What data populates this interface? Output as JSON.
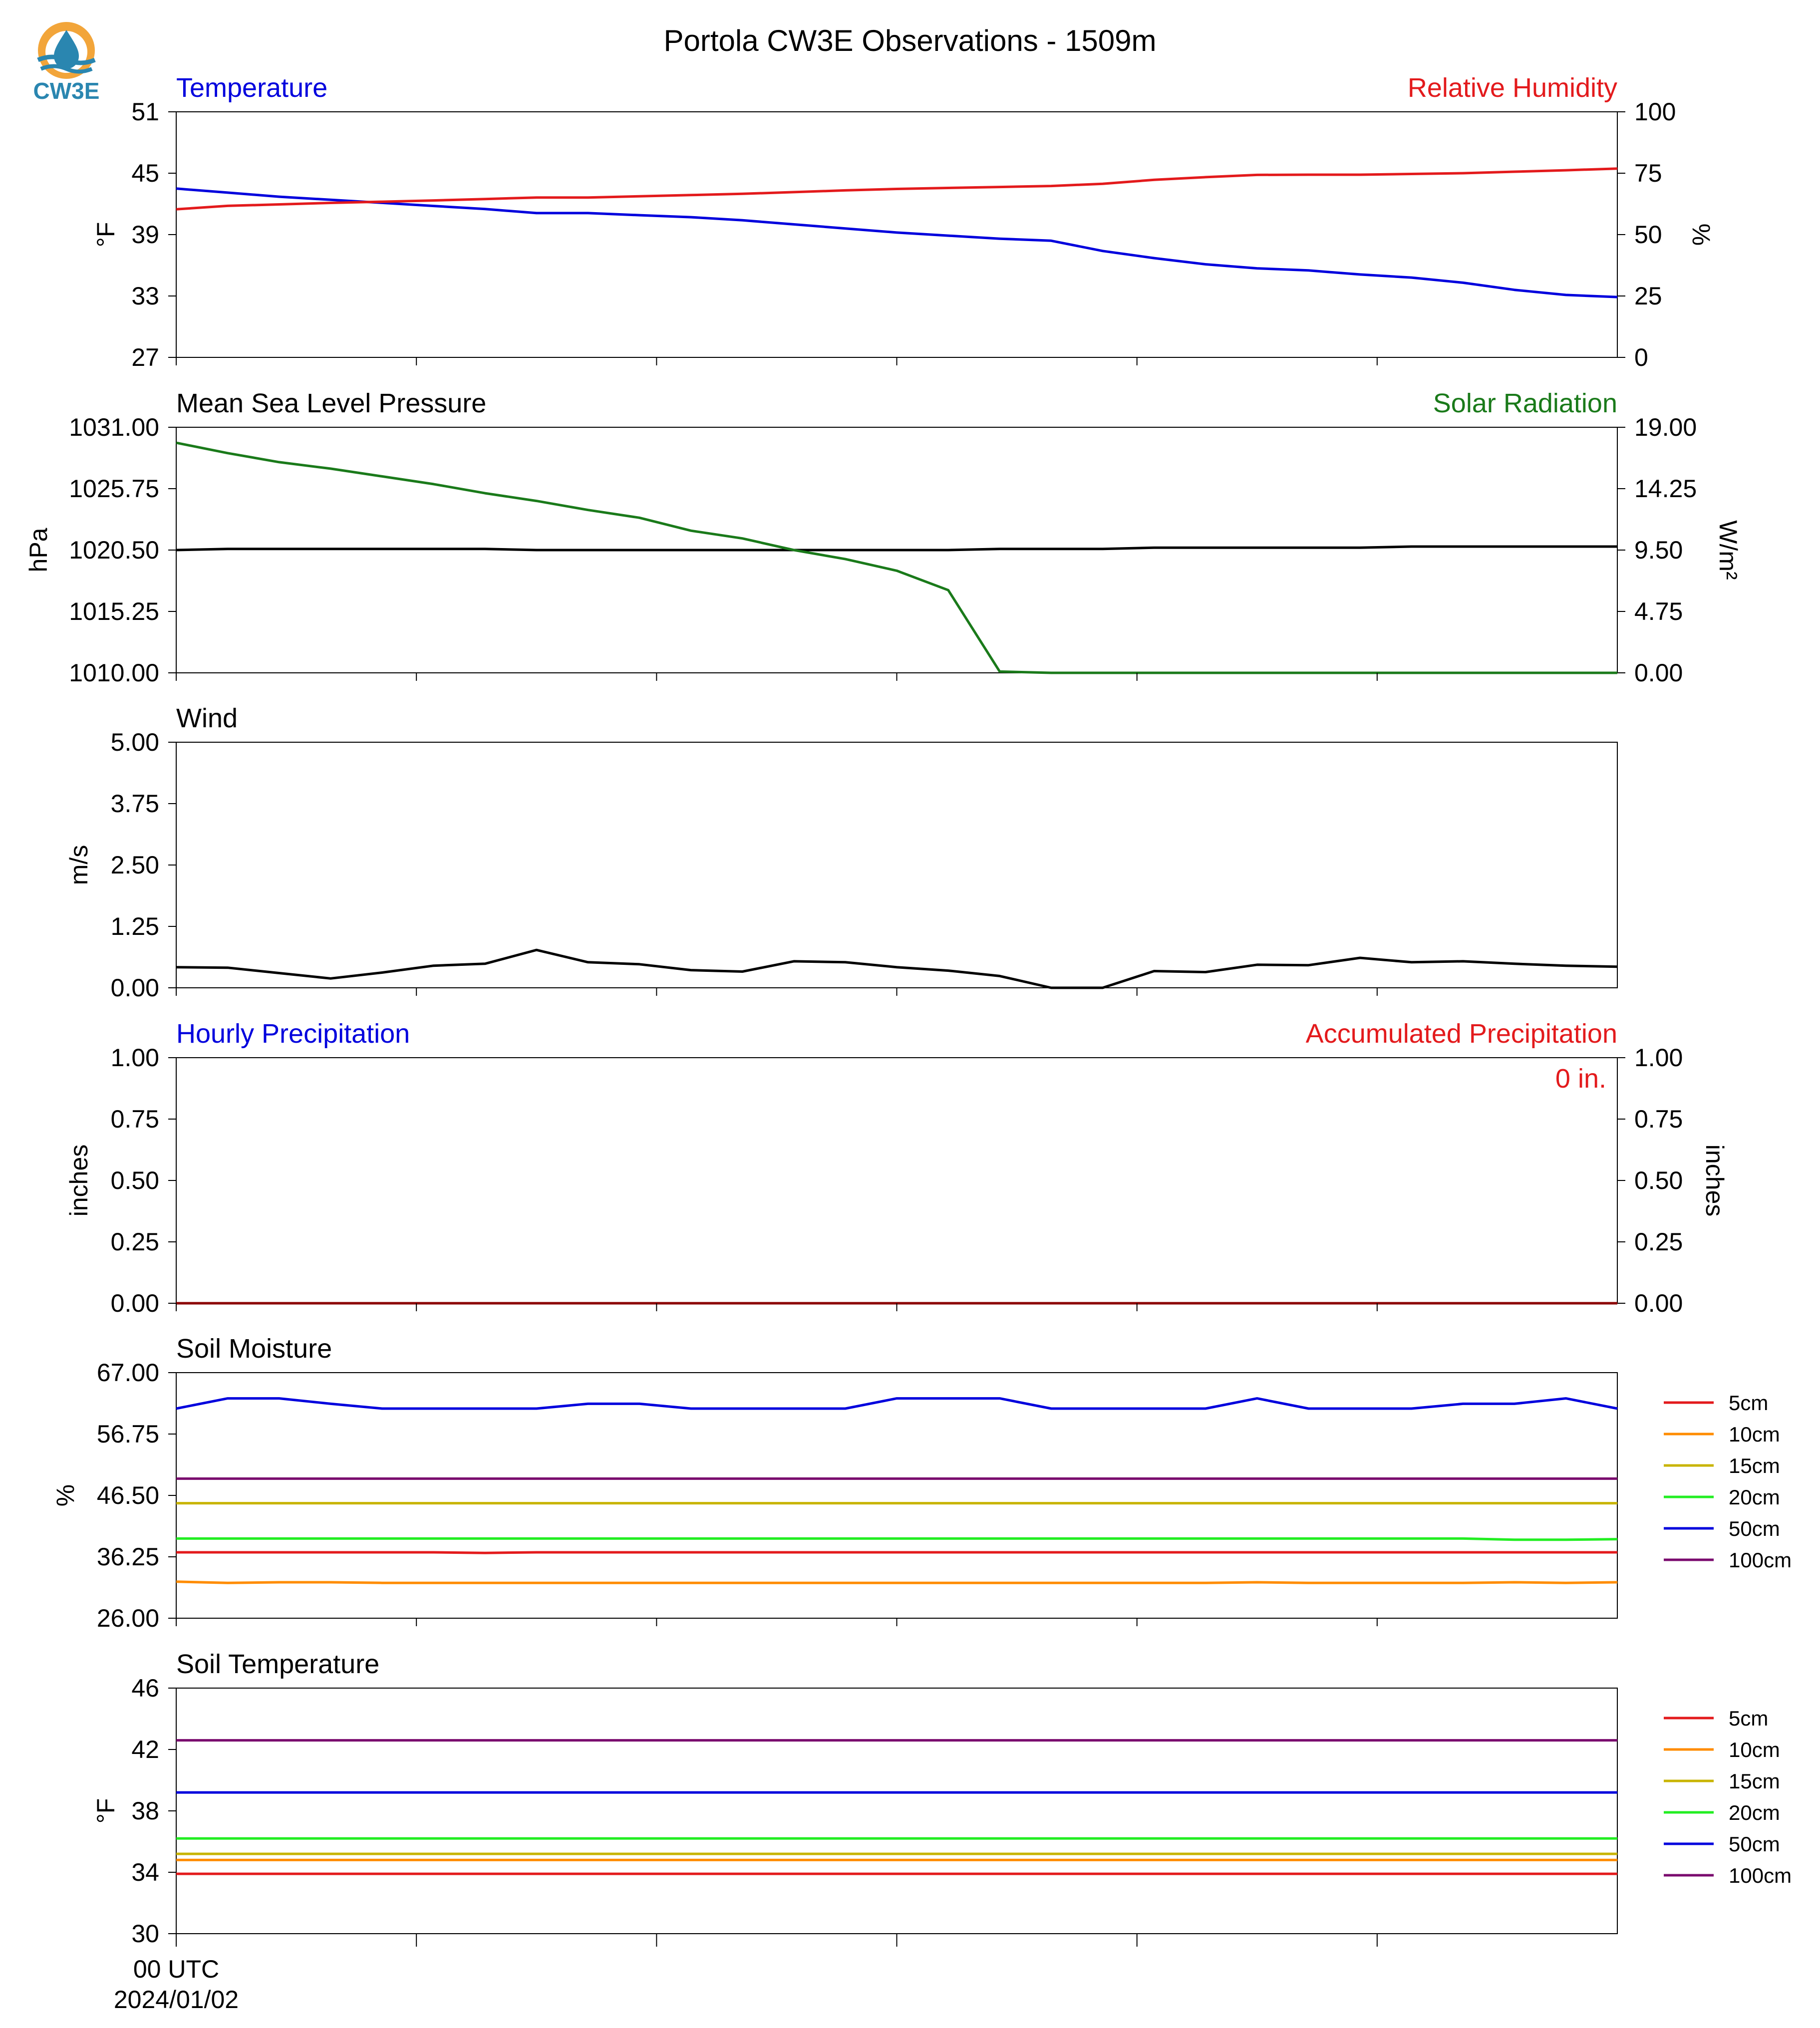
{
  "title": "Portola CW3E Observations - 1509m",
  "logo_text": "CW3E",
  "colors": {
    "blue": "#0000dd",
    "red": "#e31a1c",
    "green": "#1a7a1a",
    "black": "#000000",
    "logo_blue": "#2a86b0",
    "logo_orange": "#f2a53a"
  },
  "x_axis": {
    "first_tick_label": "00 UTC",
    "first_tick_date": "2024/01/02",
    "n_ticks": 6,
    "n_hours": 29
  },
  "chart_data": [
    {
      "type": "line",
      "title_left": "Temperature",
      "title_right": "Relative Humidity",
      "ylabel": "°F",
      "ylabel2": "%",
      "ylim": [
        27,
        51
      ],
      "ylim2": [
        0,
        100
      ],
      "yticks": [
        "27",
        "33",
        "39",
        "45",
        "51"
      ],
      "yticks2": [
        "0",
        "25",
        "50",
        "75",
        "100"
      ],
      "series": [
        {
          "axis": "left",
          "color": "#0000dd",
          "values": [
            43.5,
            43.1,
            42.7,
            42.4,
            42.1,
            41.8,
            41.5,
            41.1,
            41.1,
            40.9,
            40.7,
            40.4,
            40.0,
            39.6,
            39.2,
            38.9,
            38.6,
            38.4,
            37.4,
            36.7,
            36.1,
            35.7,
            35.5,
            35.1,
            34.8,
            34.3,
            33.6,
            33.1,
            32.9
          ]
        },
        {
          "axis": "right",
          "color": "#e31a1c",
          "values": [
            60.3,
            61.7,
            62.3,
            62.9,
            63.4,
            63.9,
            64.5,
            65.1,
            65.1,
            65.6,
            66.1,
            66.6,
            67.3,
            68.0,
            68.6,
            69.0,
            69.4,
            69.8,
            70.7,
            72.3,
            73.4,
            74.3,
            74.4,
            74.4,
            74.7,
            75.0,
            75.6,
            76.2,
            76.9
          ]
        }
      ]
    },
    {
      "type": "line",
      "title_left": "Mean Sea Level Pressure",
      "title_right": "Solar Radiation",
      "ylabel": "hPa",
      "ylabel2": "W/m²",
      "ylim": [
        1010,
        1031
      ],
      "ylim2": [
        0,
        19
      ],
      "yticks": [
        "1010.00",
        "1015.25",
        "1020.50",
        "1025.75",
        "1031.00"
      ],
      "yticks2": [
        "0.00",
        "4.75",
        "9.50",
        "14.25",
        "19.00"
      ],
      "series": [
        {
          "axis": "left",
          "color": "#000000",
          "values": [
            1020.5,
            1020.6,
            1020.6,
            1020.6,
            1020.6,
            1020.6,
            1020.6,
            1020.5,
            1020.5,
            1020.5,
            1020.5,
            1020.5,
            1020.5,
            1020.5,
            1020.5,
            1020.5,
            1020.6,
            1020.6,
            1020.6,
            1020.7,
            1020.7,
            1020.7,
            1020.7,
            1020.7,
            1020.8,
            1020.8,
            1020.8,
            1020.8,
            1020.8
          ]
        },
        {
          "axis": "right",
          "color": "#1a7a1a",
          "values": [
            17.8,
            17.0,
            16.3,
            15.8,
            15.2,
            14.6,
            13.9,
            13.3,
            12.6,
            12.0,
            11.0,
            10.4,
            9.5,
            8.8,
            7.9,
            6.4,
            0.1,
            0.0,
            0.0,
            0.0,
            0.0,
            0.0,
            0.0,
            0.0,
            0.0,
            0.0,
            0.0,
            0.0,
            0.0
          ]
        }
      ]
    },
    {
      "type": "line",
      "title_left": "Wind",
      "ylabel": "m/s",
      "ylim": [
        0,
        5
      ],
      "yticks": [
        "0.00",
        "1.25",
        "2.50",
        "3.75",
        "5.00"
      ],
      "series": [
        {
          "axis": "left",
          "color": "#000000",
          "values": [
            0.42,
            0.41,
            0.3,
            0.19,
            0.31,
            0.45,
            0.49,
            0.77,
            0.52,
            0.48,
            0.36,
            0.33,
            0.54,
            0.52,
            0.42,
            0.35,
            0.24,
            0.0,
            0.0,
            0.34,
            0.32,
            0.47,
            0.46,
            0.61,
            0.52,
            0.54,
            0.49,
            0.45,
            0.43
          ]
        }
      ]
    },
    {
      "type": "line",
      "title_left": "Hourly Precipitation",
      "title_right": "Accumulated Precipitation",
      "annotation": "0 in.",
      "ylabel": "inches",
      "ylabel2": "inches",
      "ylim": [
        0,
        1
      ],
      "ylim2": [
        0,
        1
      ],
      "yticks": [
        "0.00",
        "0.25",
        "0.50",
        "0.75",
        "1.00"
      ],
      "yticks2": [
        "0.00",
        "0.25",
        "0.50",
        "0.75",
        "1.00"
      ],
      "series": [
        {
          "axis": "left",
          "color": "#0000dd",
          "values": [
            0,
            0,
            0,
            0,
            0,
            0,
            0,
            0,
            0,
            0,
            0,
            0,
            0,
            0,
            0,
            0,
            0,
            0,
            0,
            0,
            0,
            0,
            0,
            0,
            0,
            0,
            0,
            0,
            0
          ]
        },
        {
          "axis": "right",
          "color": "#8b0000",
          "values": [
            0,
            0,
            0,
            0,
            0,
            0,
            0,
            0,
            0,
            0,
            0,
            0,
            0,
            0,
            0,
            0,
            0,
            0,
            0,
            0,
            0,
            0,
            0,
            0,
            0,
            0,
            0,
            0,
            0
          ]
        }
      ]
    },
    {
      "type": "line",
      "title_left": "Soil Moisture",
      "ylabel": "%",
      "ylim": [
        26,
        67
      ],
      "yticks": [
        "26.00",
        "36.25",
        "46.50",
        "56.75",
        "67.00"
      ],
      "legend": "right",
      "series": [
        {
          "name": "5cm",
          "color": "#e31a1c",
          "values": [
            37.0,
            37.0,
            37.0,
            37.0,
            37.0,
            37.0,
            36.9,
            37.0,
            37.0,
            37.0,
            37.0,
            37.0,
            37.0,
            37.0,
            37.0,
            37.0,
            37.0,
            37.0,
            37.0,
            37.0,
            37.0,
            37.0,
            37.0,
            37.0,
            37.0,
            37.0,
            37.0,
            37.0,
            37.0
          ]
        },
        {
          "name": "10cm",
          "color": "#ff8c00",
          "values": [
            32.1,
            31.9,
            32.0,
            32.0,
            31.9,
            31.9,
            31.9,
            31.9,
            31.9,
            31.9,
            31.9,
            31.9,
            31.9,
            31.9,
            31.9,
            31.9,
            31.9,
            31.9,
            31.9,
            31.9,
            31.9,
            32.0,
            31.9,
            31.9,
            31.9,
            31.9,
            32.0,
            31.9,
            32.0
          ]
        },
        {
          "name": "15cm",
          "color": "#c8b400",
          "values": [
            45.2,
            45.2,
            45.2,
            45.2,
            45.2,
            45.2,
            45.2,
            45.2,
            45.2,
            45.2,
            45.2,
            45.2,
            45.2,
            45.2,
            45.2,
            45.2,
            45.2,
            45.2,
            45.2,
            45.2,
            45.2,
            45.2,
            45.2,
            45.2,
            45.2,
            45.2,
            45.2,
            45.2,
            45.2
          ]
        },
        {
          "name": "20cm",
          "color": "#22ee22",
          "values": [
            39.3,
            39.3,
            39.3,
            39.3,
            39.3,
            39.3,
            39.3,
            39.3,
            39.3,
            39.3,
            39.3,
            39.3,
            39.3,
            39.3,
            39.3,
            39.3,
            39.3,
            39.3,
            39.3,
            39.3,
            39.3,
            39.3,
            39.3,
            39.3,
            39.3,
            39.3,
            39.1,
            39.1,
            39.2
          ]
        },
        {
          "name": "50cm",
          "color": "#0000dd",
          "values": [
            61.0,
            62.7,
            62.7,
            61.8,
            61.0,
            61.0,
            61.0,
            61.0,
            61.8,
            61.8,
            61.0,
            61.0,
            61.0,
            61.0,
            62.7,
            62.7,
            62.7,
            61.0,
            61.0,
            61.0,
            61.0,
            62.7,
            61.0,
            61.0,
            61.0,
            61.8,
            61.8,
            62.7,
            61.0
          ]
        },
        {
          "name": "100cm",
          "color": "#7a0a6e",
          "values": [
            49.3,
            49.3,
            49.3,
            49.3,
            49.3,
            49.3,
            49.3,
            49.3,
            49.3,
            49.3,
            49.3,
            49.3,
            49.3,
            49.3,
            49.3,
            49.3,
            49.3,
            49.3,
            49.3,
            49.3,
            49.3,
            49.3,
            49.3,
            49.3,
            49.3,
            49.3,
            49.3,
            49.3,
            49.3
          ]
        }
      ]
    },
    {
      "type": "line",
      "title_left": "Soil Temperature",
      "ylabel": "°F",
      "ylim": [
        30,
        46
      ],
      "yticks": [
        "30",
        "34",
        "38",
        "42",
        "46"
      ],
      "legend": "right",
      "series": [
        {
          "name": "5cm",
          "color": "#e31a1c",
          "values": [
            33.9,
            33.9,
            33.9,
            33.9,
            33.9,
            33.9,
            33.9,
            33.9,
            33.9,
            33.9,
            33.9,
            33.9,
            33.9,
            33.9,
            33.9,
            33.9,
            33.9,
            33.9,
            33.9,
            33.9,
            33.9,
            33.9,
            33.9,
            33.9,
            33.9,
            33.9,
            33.9,
            33.9,
            33.9
          ]
        },
        {
          "name": "10cm",
          "color": "#ff8c00",
          "values": [
            34.8,
            34.8,
            34.8,
            34.8,
            34.8,
            34.8,
            34.8,
            34.8,
            34.8,
            34.8,
            34.8,
            34.8,
            34.8,
            34.8,
            34.8,
            34.8,
            34.8,
            34.8,
            34.8,
            34.8,
            34.8,
            34.8,
            34.8,
            34.8,
            34.8,
            34.8,
            34.8,
            34.8,
            34.8
          ]
        },
        {
          "name": "15cm",
          "color": "#c8b400",
          "values": [
            35.2,
            35.2,
            35.2,
            35.2,
            35.2,
            35.2,
            35.2,
            35.2,
            35.2,
            35.2,
            35.2,
            35.2,
            35.2,
            35.2,
            35.2,
            35.2,
            35.2,
            35.2,
            35.2,
            35.2,
            35.2,
            35.2,
            35.2,
            35.2,
            35.2,
            35.2,
            35.2,
            35.2,
            35.2
          ]
        },
        {
          "name": "20cm",
          "color": "#22ee22",
          "values": [
            36.2,
            36.2,
            36.2,
            36.2,
            36.2,
            36.2,
            36.2,
            36.2,
            36.2,
            36.2,
            36.2,
            36.2,
            36.2,
            36.2,
            36.2,
            36.2,
            36.2,
            36.2,
            36.2,
            36.2,
            36.2,
            36.2,
            36.2,
            36.2,
            36.2,
            36.2,
            36.2,
            36.2,
            36.2
          ]
        },
        {
          "name": "50cm",
          "color": "#0000dd",
          "values": [
            39.2,
            39.2,
            39.2,
            39.2,
            39.2,
            39.2,
            39.2,
            39.2,
            39.2,
            39.2,
            39.2,
            39.2,
            39.2,
            39.2,
            39.2,
            39.2,
            39.2,
            39.2,
            39.2,
            39.2,
            39.2,
            39.2,
            39.2,
            39.2,
            39.2,
            39.2,
            39.2,
            39.2,
            39.2
          ]
        },
        {
          "name": "100cm",
          "color": "#7a0a6e",
          "values": [
            42.6,
            42.6,
            42.6,
            42.6,
            42.6,
            42.6,
            42.6,
            42.6,
            42.6,
            42.6,
            42.6,
            42.6,
            42.6,
            42.6,
            42.6,
            42.6,
            42.6,
            42.6,
            42.6,
            42.6,
            42.6,
            42.6,
            42.6,
            42.6,
            42.6,
            42.6,
            42.6,
            42.6,
            42.6
          ]
        }
      ]
    }
  ]
}
